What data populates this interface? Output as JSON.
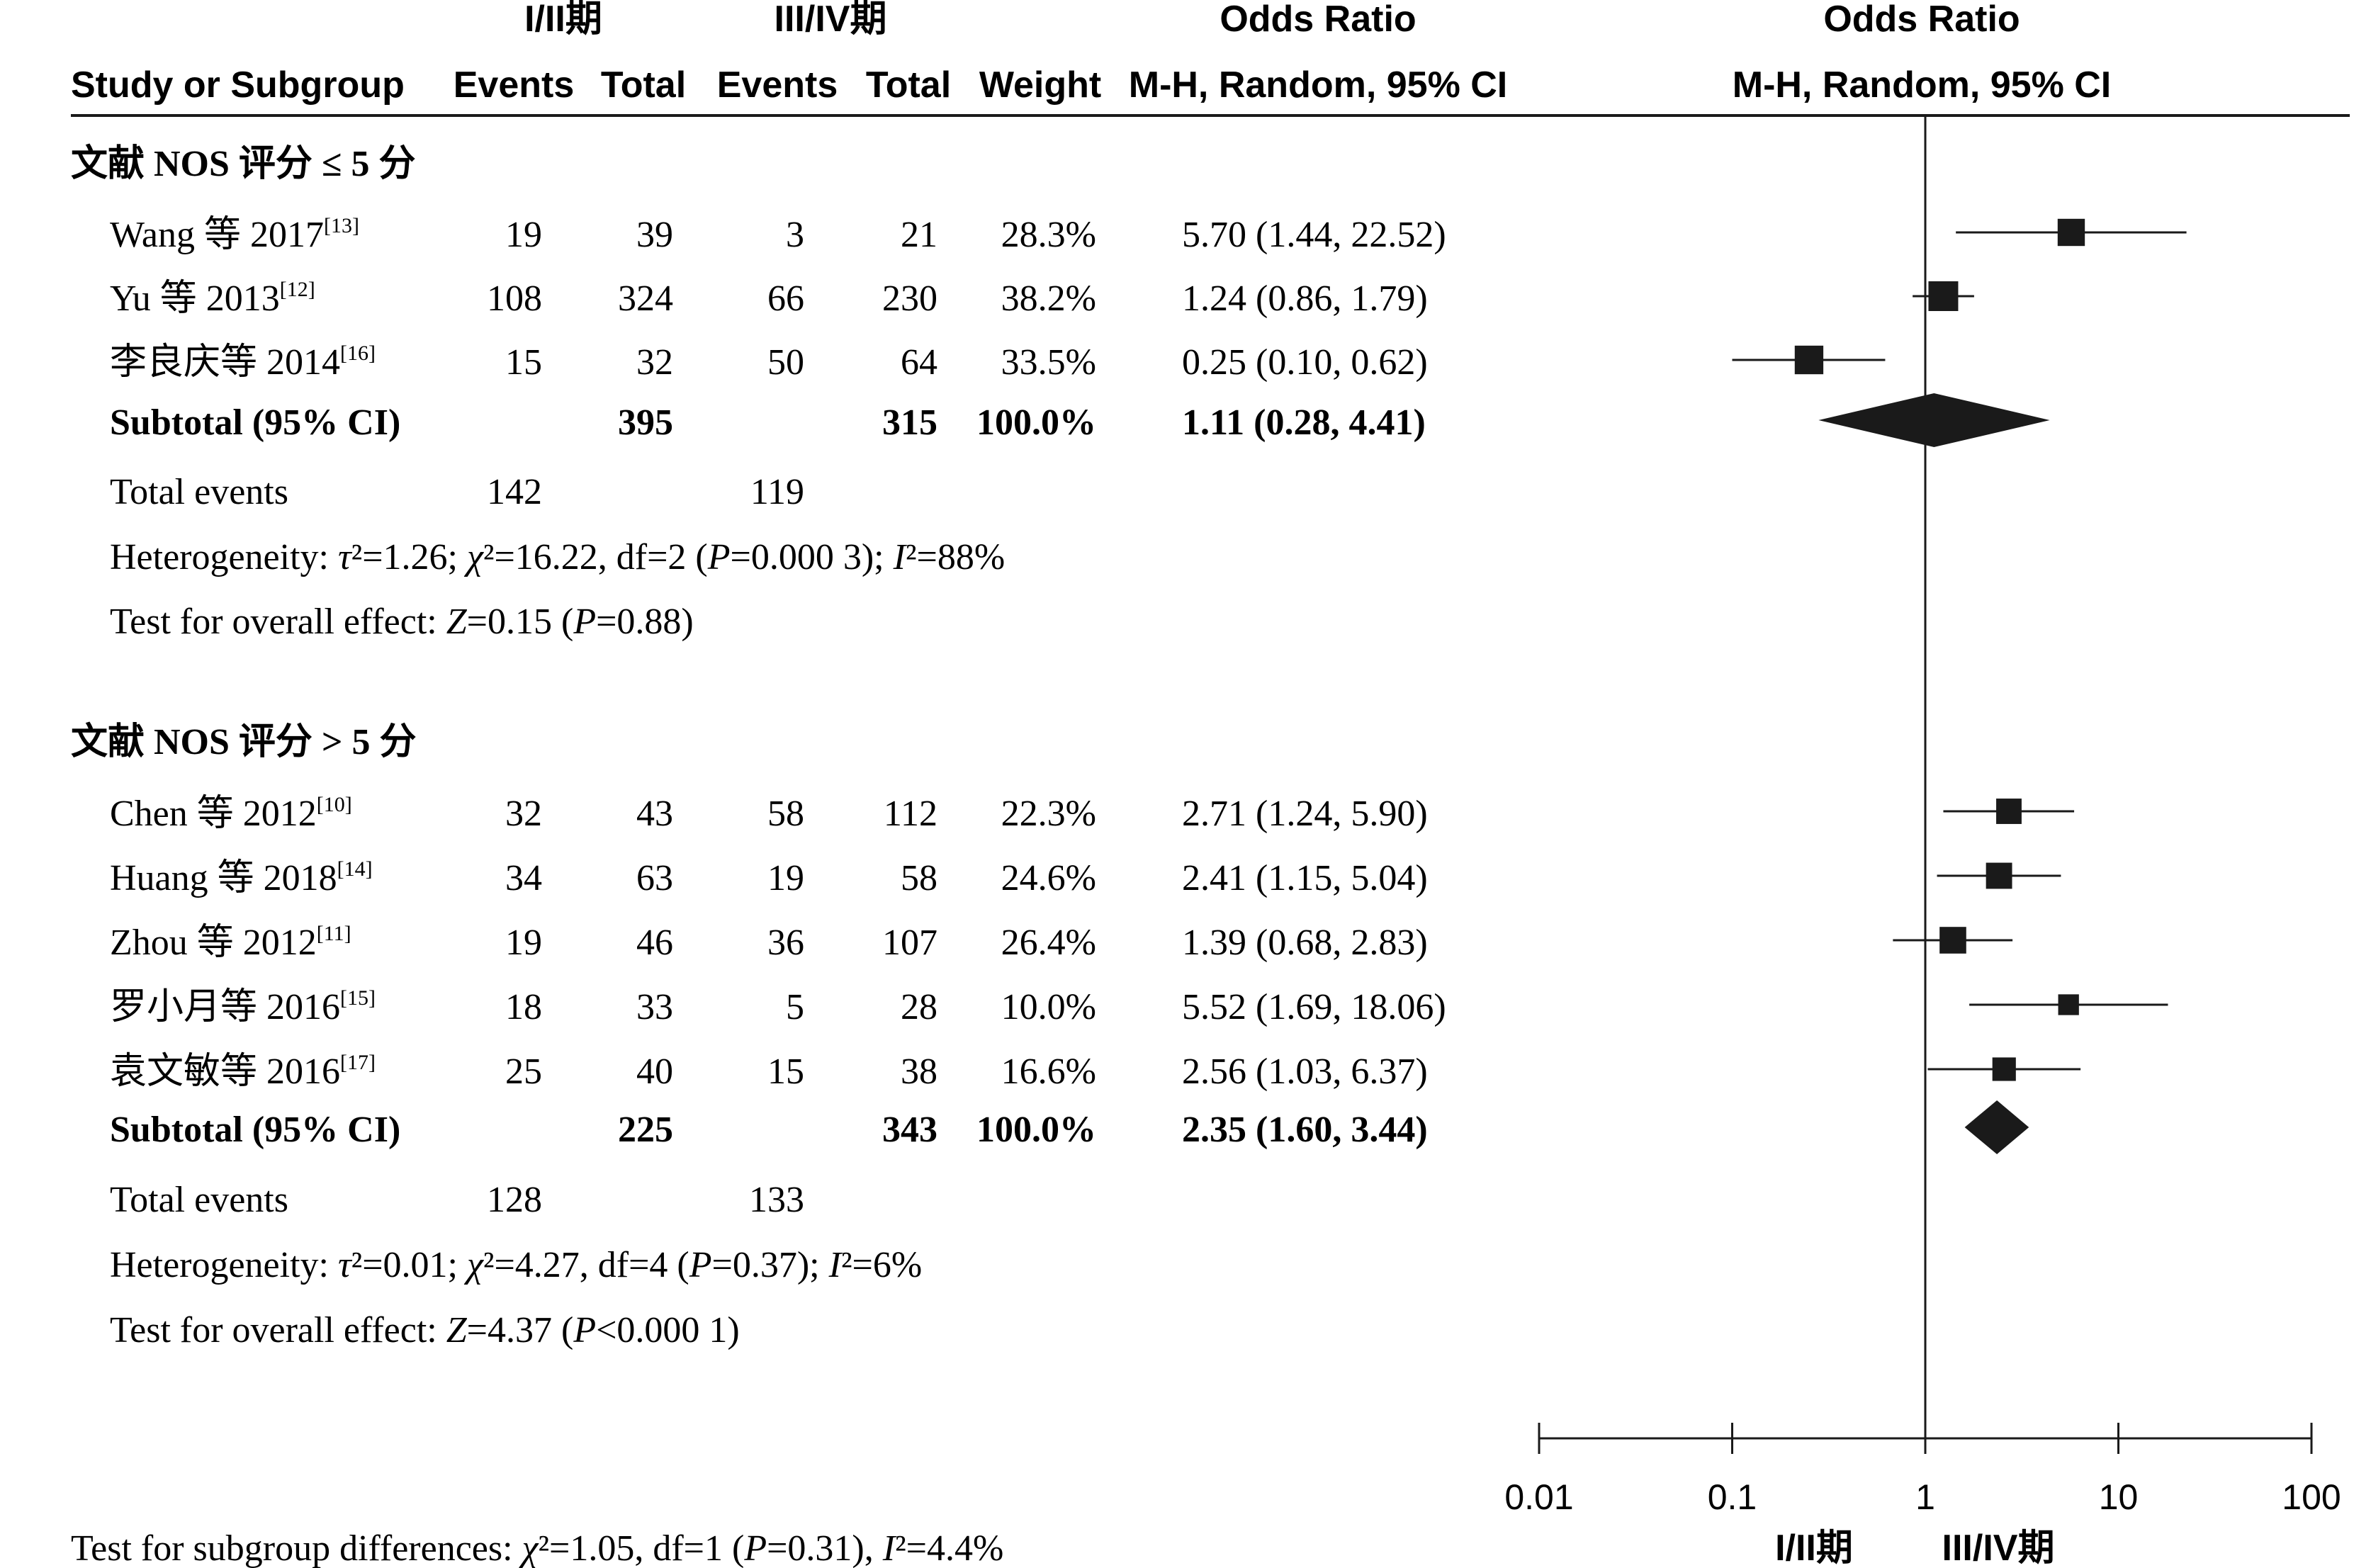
{
  "chart_data": {
    "type": "forest",
    "header": {
      "group1": "I/II期",
      "group2": "III/IV期",
      "or_title": "Odds Ratio",
      "or_method": "M-H, Random, 95% CI",
      "study_col": "Study or Subgroup",
      "events_col": "Events",
      "total_col": "Total",
      "weight_col": "Weight"
    },
    "subgroups": [
      {
        "title": "文献 NOS 评分 ≤ 5 分",
        "studies": [
          {
            "name": "Wang 等 2017",
            "ref": "[13]",
            "e1": "19",
            "t1": "39",
            "e2": "3",
            "t2": "21",
            "weight": "28.3%",
            "ci_text": "5.70 (1.44, 22.52)",
            "or": 5.7,
            "lo": 1.44,
            "hi": 22.52
          },
          {
            "name": "Yu 等 2013",
            "ref": "[12]",
            "e1": "108",
            "t1": "324",
            "e2": "66",
            "t2": "230",
            "weight": "38.2%",
            "ci_text": "1.24 (0.86, 1.79)",
            "or": 1.24,
            "lo": 0.86,
            "hi": 1.79
          },
          {
            "name": "李良庆等 2014",
            "ref": "[16]",
            "e1": "15",
            "t1": "32",
            "e2": "50",
            "t2": "64",
            "weight": "33.5%",
            "ci_text": "0.25 (0.10, 0.62)",
            "or": 0.25,
            "lo": 0.1,
            "hi": 0.62
          }
        ],
        "subtotal": {
          "label": "Subtotal (95% CI)",
          "t1": "395",
          "t2": "315",
          "weight": "100.0%",
          "ci_text": "1.11 (0.28, 4.41)",
          "or": 1.11,
          "lo": 0.28,
          "hi": 4.41
        },
        "total_events": {
          "label": "Total events",
          "e1": "142",
          "e2": "119"
        },
        "heterogeneity": "Heterogeneity: τ²=1.26; χ²=16.22, df=2 (P=0.000 3); I²=88%",
        "overall_effect": "Test for overall effect: Z=0.15 (P=0.88)"
      },
      {
        "title": "文献 NOS 评分 > 5 分",
        "studies": [
          {
            "name": "Chen 等 2012",
            "ref": "[10]",
            "e1": "32",
            "t1": "43",
            "e2": "58",
            "t2": "112",
            "weight": "22.3%",
            "ci_text": "2.71 (1.24, 5.90)",
            "or": 2.71,
            "lo": 1.24,
            "hi": 5.9
          },
          {
            "name": "Huang 等 2018",
            "ref": "[14]",
            "e1": "34",
            "t1": "63",
            "e2": "19",
            "t2": "58",
            "weight": "24.6%",
            "ci_text": "2.41 (1.15, 5.04)",
            "or": 2.41,
            "lo": 1.15,
            "hi": 5.04
          },
          {
            "name": "Zhou 等 2012",
            "ref": "[11]",
            "e1": "19",
            "t1": "46",
            "e2": "36",
            "t2": "107",
            "weight": "26.4%",
            "ci_text": "1.39 (0.68, 2.83)",
            "or": 1.39,
            "lo": 0.68,
            "hi": 2.83
          },
          {
            "name": "罗小月等 2016",
            "ref": "[15]",
            "e1": "18",
            "t1": "33",
            "e2": "5",
            "t2": "28",
            "weight": "10.0%",
            "ci_text": "5.52 (1.69, 18.06)",
            "or": 5.52,
            "lo": 1.69,
            "hi": 18.06
          },
          {
            "name": "袁文敏等 2016",
            "ref": "[17]",
            "e1": "25",
            "t1": "40",
            "e2": "15",
            "t2": "38",
            "weight": "16.6%",
            "ci_text": "2.56 (1.03, 6.37)",
            "or": 2.56,
            "lo": 1.03,
            "hi": 6.37
          }
        ],
        "subtotal": {
          "label": "Subtotal (95% CI)",
          "t1": "225",
          "t2": "343",
          "weight": "100.0%",
          "ci_text": "2.35 (1.60, 3.44)",
          "or": 2.35,
          "lo": 1.6,
          "hi": 3.44
        },
        "total_events": {
          "label": "Total events",
          "e1": "128",
          "e2": "133"
        },
        "heterogeneity": "Heterogeneity: τ²=0.01; χ²=4.27, df=4 (P=0.37); I²=6%",
        "overall_effect": "Test for overall effect: Z=4.37 (P<0.000 1)"
      }
    ],
    "axis": {
      "scale": "log",
      "xlim": [
        0.01,
        100
      ],
      "ticks": [
        0.01,
        0.1,
        1,
        10,
        100
      ],
      "tick_labels": [
        "0.01",
        "0.1",
        "1",
        "10",
        "100"
      ],
      "favours_left": "I/II期",
      "favours_right": "III/IV期"
    },
    "subgroup_test": "Test for subgroup differences: χ²=1.05, df=1 (P=0.31), I²=4.4%"
  }
}
